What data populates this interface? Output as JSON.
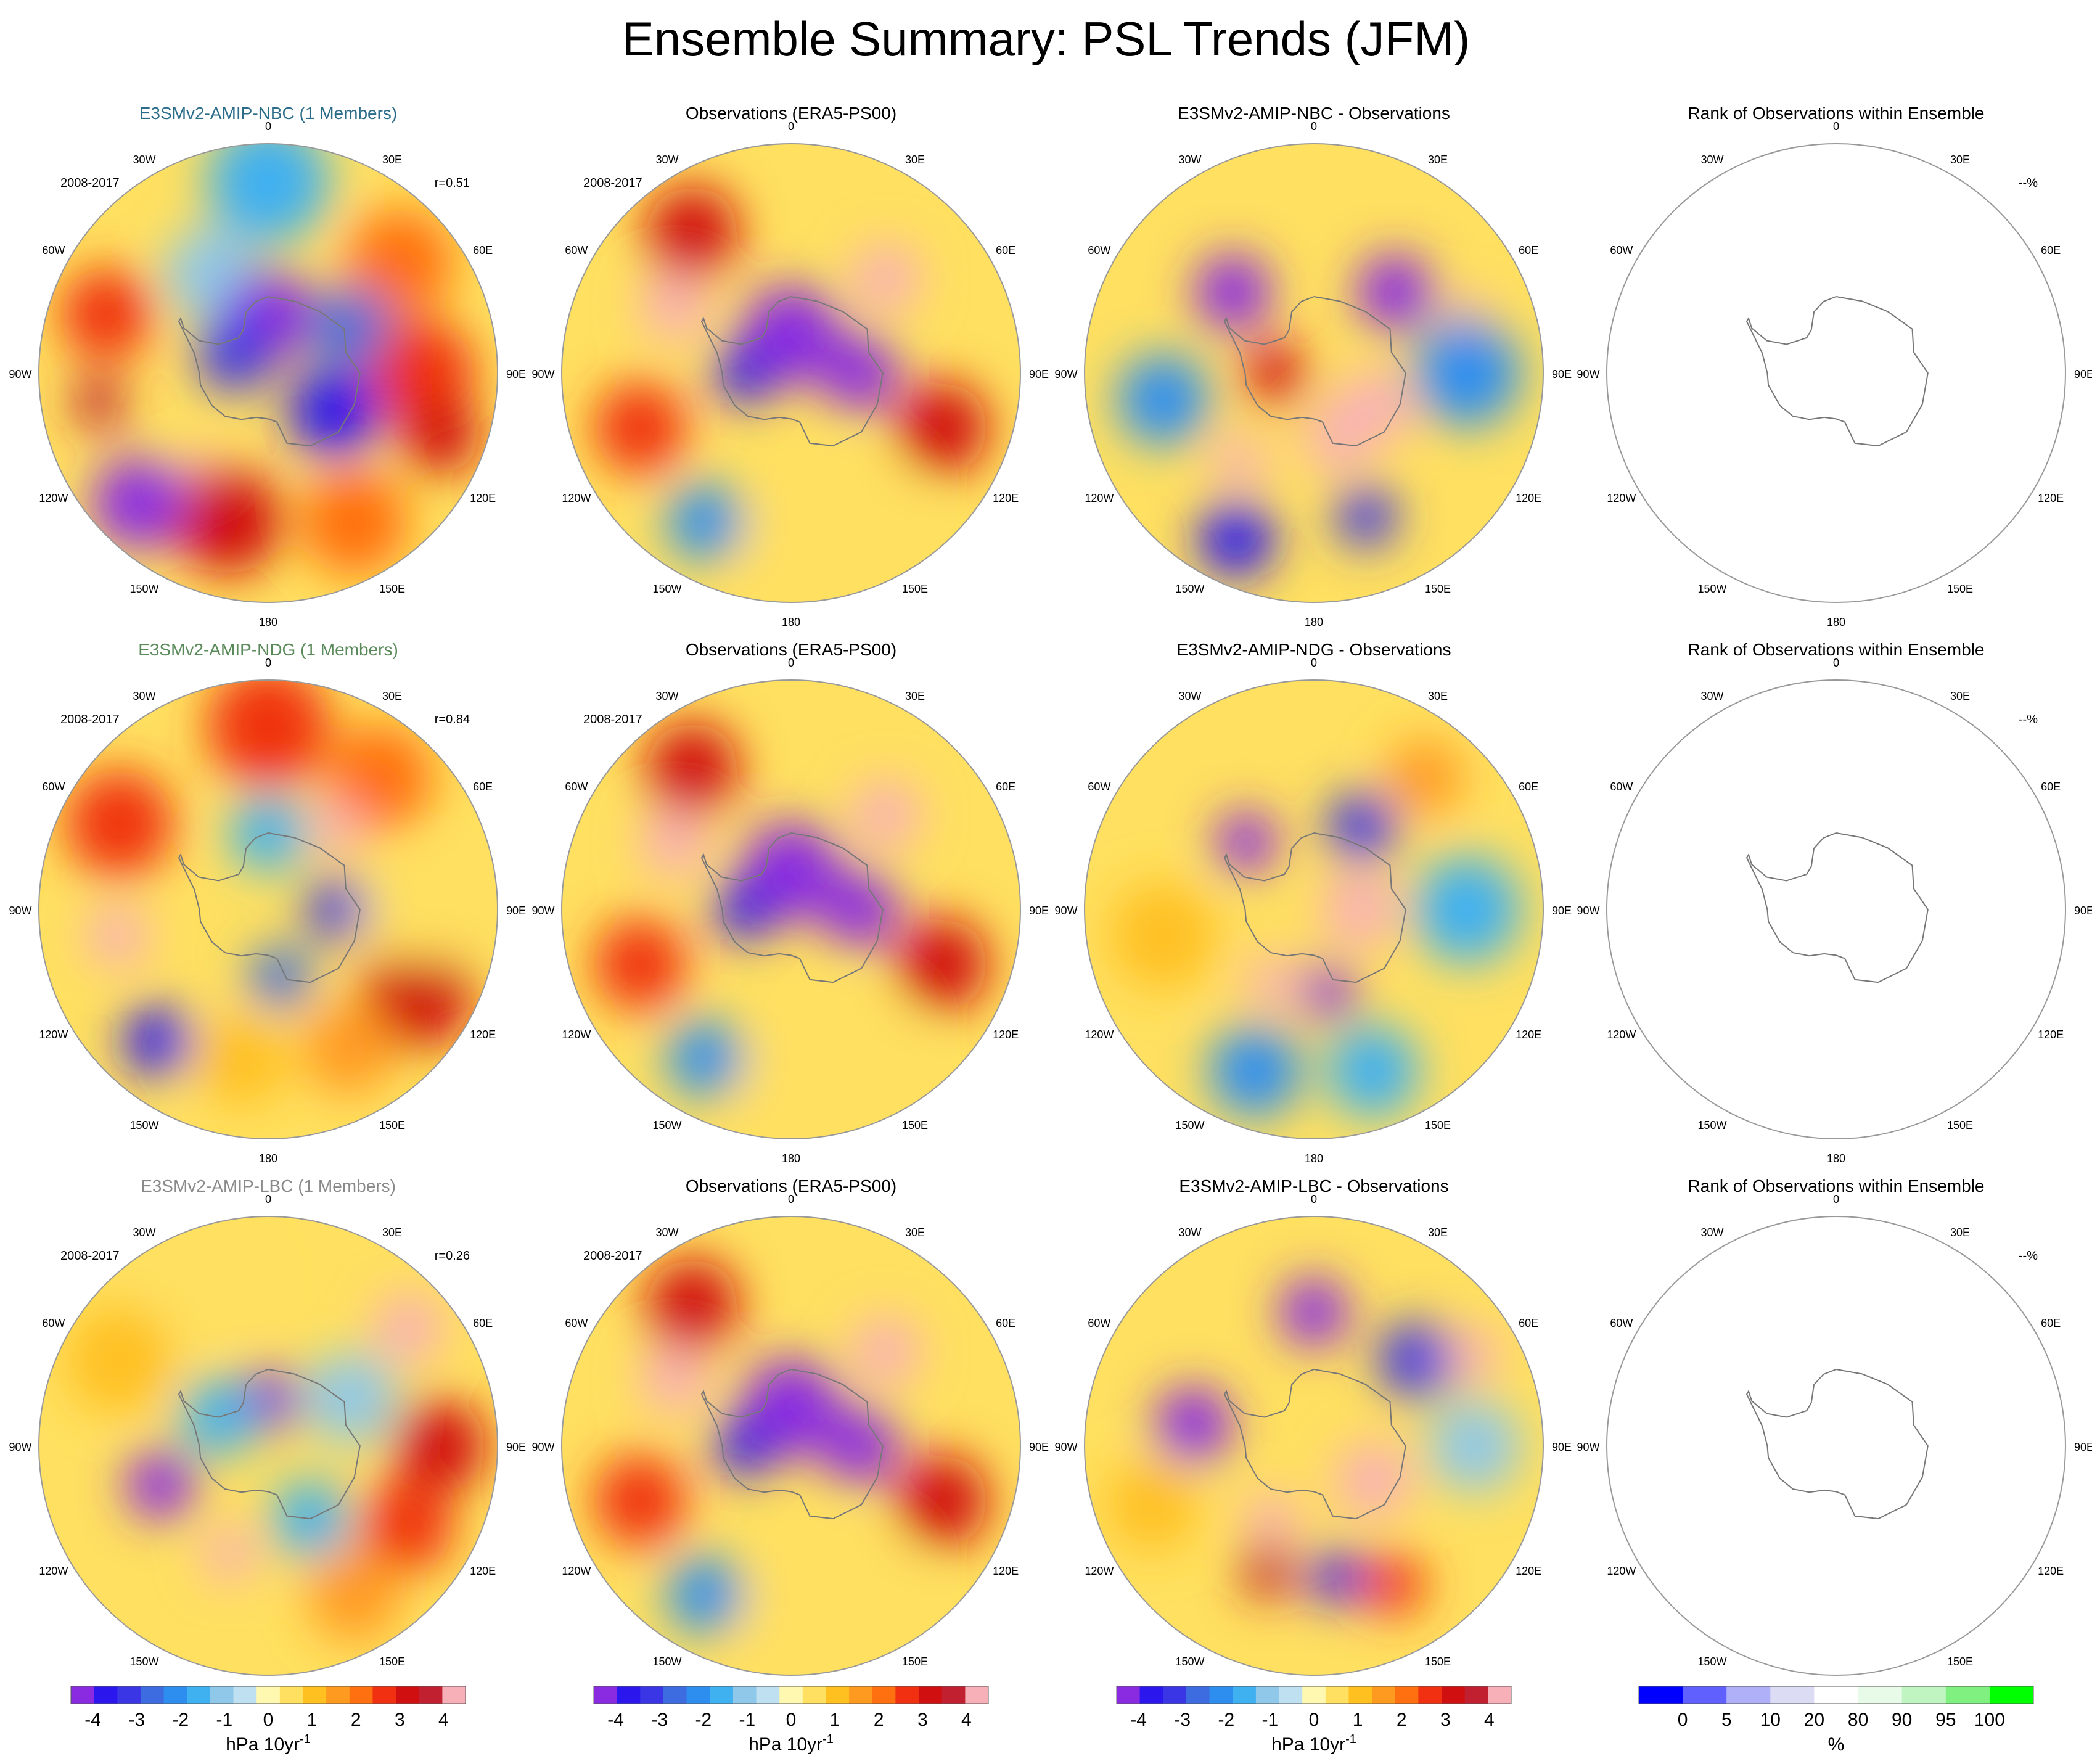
{
  "page": {
    "title": "Ensemble Summary: PSL Trends (JFM)"
  },
  "colors": {
    "model_nbc_title": "#2a6c8a",
    "model_ndg_title": "#5a8a5a",
    "model_lbc_title": "#8a8a8a",
    "map_outline": "#999999",
    "coast": "#777777"
  },
  "chart_data": {
    "type": "heatmap",
    "title": "Ensemble Summary: PSL Trends (JFM)",
    "projection": "south-polar-stereographic",
    "lon_labels": [
      "0",
      "30E",
      "60E",
      "90E",
      "120E",
      "150E",
      "180",
      "150W",
      "120W",
      "90W",
      "60W",
      "30W"
    ],
    "rows": [
      {
        "model_title": "E3SMv2-AMIP-NBC (1 Members)",
        "obs_title": "Observations (ERA5-PS00)",
        "diff_title": "E3SMv2-AMIP-NBC - Observations",
        "rank_title": "Rank of Observations within Ensemble",
        "period": "2008-2017",
        "r": "r=0.51",
        "rank_pct": "--%"
      },
      {
        "model_title": "E3SMv2-AMIP-NDG (1 Members)",
        "obs_title": "Observations (ERA5-PS00)",
        "diff_title": "E3SMv2-AMIP-NDG - Observations",
        "rank_title": "Rank of Observations within Ensemble",
        "period": "2008-2017",
        "r": "r=0.84",
        "rank_pct": "--%"
      },
      {
        "model_title": "E3SMv2-AMIP-LBC (1 Members)",
        "obs_title": "Observations (ERA5-PS00)",
        "diff_title": "E3SMv2-AMIP-LBC - Observations",
        "rank_title": "Rank of Observations within Ensemble",
        "period": "2008-2017",
        "r": "r=0.26",
        "rank_pct": "--%"
      }
    ],
    "trend_colorbar": {
      "colors": [
        "#8a2be2",
        "#2b16ee",
        "#3a36e6",
        "#3c6ce0",
        "#2d8ef0",
        "#3fb0f0",
        "#8fc8e8",
        "#bfe0f0",
        "#fff8b0",
        "#ffe060",
        "#ffc020",
        "#ff9a20",
        "#ff7010",
        "#f03010",
        "#d01010",
        "#c02030",
        "#f8b0b8"
      ],
      "tick_labels": [
        "-4",
        "-3",
        "-2",
        "-1",
        "0",
        "1",
        "2",
        "3",
        "4"
      ],
      "tick_values": [
        -4,
        -3,
        -2,
        -1,
        0,
        1,
        2,
        3,
        4
      ],
      "range": [
        -4.5,
        4.5
      ],
      "units_prefix": "hPa 10yr",
      "units_sup": "-1"
    },
    "rank_colorbar": {
      "colors": [
        "#0000ff",
        "#6060ff",
        "#b0b0f8",
        "#dcdcf4",
        "#ffffff",
        "#e8fae8",
        "#c0f4c0",
        "#80f080",
        "#00ff00"
      ],
      "tick_labels": [
        "0",
        "5",
        "10",
        "20",
        "80",
        "90",
        "95",
        "100"
      ],
      "units": "%"
    },
    "maps": {
      "nbc_model": [
        {
          "lon": 0,
          "lat": -40,
          "v": -1.5,
          "s": 16
        },
        {
          "lon": 50,
          "lat": -45,
          "v": 2.0,
          "s": 14
        },
        {
          "lon": 90,
          "lat": -50,
          "v": 2.5,
          "s": 14
        },
        {
          "lon": 110,
          "lat": -42,
          "v": 3.0,
          "s": 10
        },
        {
          "lon": 150,
          "lat": -45,
          "v": 2.0,
          "s": 14
        },
        {
          "lon": -150,
          "lat": -55,
          "v": 4.0,
          "s": 9
        },
        {
          "lon": -165,
          "lat": -50,
          "v": 3.0,
          "s": 14
        },
        {
          "lon": -135,
          "lat": -42,
          "v": -4.5,
          "s": 12
        },
        {
          "lon": -100,
          "lat": -45,
          "v": 3.5,
          "s": 7
        },
        {
          "lon": -70,
          "lat": -45,
          "v": 2.5,
          "s": 12
        },
        {
          "lon": -30,
          "lat": -60,
          "v": -1.0,
          "s": 12
        },
        {
          "lon": 60,
          "lat": -65,
          "v": -2.5,
          "s": 10
        },
        {
          "lon": 0,
          "lat": -75,
          "v": -4.5,
          "s": 12
        },
        {
          "lon": 120,
          "lat": -70,
          "v": -3.5,
          "s": 12
        },
        {
          "lon": -60,
          "lat": -80,
          "v": -3.0,
          "s": 10
        }
      ],
      "nbc_diff": [
        {
          "lon": -45,
          "lat": -60,
          "v": -4.5,
          "s": 10
        },
        {
          "lon": 45,
          "lat": -60,
          "v": -4.5,
          "s": 10
        },
        {
          "lon": 70,
          "lat": -48,
          "v": 4.0,
          "s": 6
        },
        {
          "lon": 120,
          "lat": -72,
          "v": 4.5,
          "s": 10
        },
        {
          "lon": 160,
          "lat": -72,
          "v": 4.0,
          "s": 9
        },
        {
          "lon": -140,
          "lat": -60,
          "v": 4.5,
          "s": 7
        },
        {
          "lon": 160,
          "lat": -50,
          "v": -3.0,
          "s": 8
        },
        {
          "lon": -155,
          "lat": -42,
          "v": -3.5,
          "s": 10
        },
        {
          "lon": -100,
          "lat": -50,
          "v": -2.0,
          "s": 12
        },
        {
          "lon": 90,
          "lat": -50,
          "v": -2.0,
          "s": 14
        },
        {
          "lon": -90,
          "lat": -80,
          "v": 3.0,
          "s": 8
        }
      ],
      "ndg_model": [
        {
          "lon": 0,
          "lat": -42,
          "v": 2.5,
          "s": 16
        },
        {
          "lon": 40,
          "lat": -45,
          "v": 2.0,
          "s": 14
        },
        {
          "lon": -60,
          "lat": -45,
          "v": 2.5,
          "s": 14
        },
        {
          "lon": -100,
          "lat": -50,
          "v": 4.5,
          "s": 8
        },
        {
          "lon": 40,
          "lat": -62,
          "v": 4.0,
          "s": 7
        },
        {
          "lon": 120,
          "lat": -45,
          "v": 3.0,
          "s": 14
        },
        {
          "lon": -140,
          "lat": -45,
          "v": -3.5,
          "s": 9
        },
        {
          "lon": -170,
          "lat": -50,
          "v": 1.0,
          "s": 12
        },
        {
          "lon": 150,
          "lat": -48,
          "v": 1.5,
          "s": 12
        },
        {
          "lon": 90,
          "lat": -72,
          "v": -3.0,
          "s": 8
        },
        {
          "lon": 170,
          "lat": -72,
          "v": -2.5,
          "s": 8
        },
        {
          "lon": 0,
          "lat": -70,
          "v": -1.5,
          "s": 10
        },
        {
          "lon": 90,
          "lat": -50,
          "v": 0.5,
          "s": 14
        }
      ],
      "ndg_diff": [
        {
          "lon": -45,
          "lat": -65,
          "v": -4.0,
          "s": 8
        },
        {
          "lon": 30,
          "lat": -65,
          "v": -3.0,
          "s": 9
        },
        {
          "lon": 90,
          "lat": -78,
          "v": 4.5,
          "s": 10
        },
        {
          "lon": -150,
          "lat": -68,
          "v": 4.0,
          "s": 7
        },
        {
          "lon": 170,
          "lat": -68,
          "v": -4.0,
          "s": 7
        },
        {
          "lon": -100,
          "lat": -50,
          "v": 1.0,
          "s": 14
        },
        {
          "lon": 40,
          "lat": -45,
          "v": 1.5,
          "s": 10
        },
        {
          "lon": 90,
          "lat": -50,
          "v": -1.5,
          "s": 14
        },
        {
          "lon": -160,
          "lat": -45,
          "v": -2.0,
          "s": 12
        },
        {
          "lon": 160,
          "lat": -45,
          "v": -1.5,
          "s": 12
        }
      ],
      "lbc_model": [
        {
          "lon": 0,
          "lat": -78,
          "v": -4.0,
          "s": 8
        },
        {
          "lon": -110,
          "lat": -60,
          "v": -4.5,
          "s": 9
        },
        {
          "lon": -160,
          "lat": -60,
          "v": 4.0,
          "s": 7
        },
        {
          "lon": 50,
          "lat": -42,
          "v": 4.0,
          "s": 9
        },
        {
          "lon": 90,
          "lat": -45,
          "v": 3.0,
          "s": 12
        },
        {
          "lon": 120,
          "lat": -48,
          "v": 2.5,
          "s": 12
        },
        {
          "lon": 150,
          "lat": -45,
          "v": 1.5,
          "s": 12
        },
        {
          "lon": -60,
          "lat": -45,
          "v": 1.0,
          "s": 14
        },
        {
          "lon": -20,
          "lat": -45,
          "v": 0.5,
          "s": 14
        },
        {
          "lon": 150,
          "lat": -68,
          "v": -1.5,
          "s": 10
        },
        {
          "lon": 60,
          "lat": -65,
          "v": -1.0,
          "s": 12
        },
        {
          "lon": -60,
          "lat": -75,
          "v": -1.5,
          "s": 10
        }
      ],
      "lbc_diff": [
        {
          "lon": 0,
          "lat": -55,
          "v": -4.5,
          "s": 9
        },
        {
          "lon": -80,
          "lat": -58,
          "v": -4.5,
          "s": 10
        },
        {
          "lon": 50,
          "lat": -55,
          "v": -3.0,
          "s": 10
        },
        {
          "lon": 60,
          "lat": -42,
          "v": 4.0,
          "s": 7
        },
        {
          "lon": 120,
          "lat": -72,
          "v": 4.5,
          "s": 10
        },
        {
          "lon": -150,
          "lat": -68,
          "v": 4.5,
          "s": 7
        },
        {
          "lon": -160,
          "lat": -55,
          "v": 3.5,
          "s": 7
        },
        {
          "lon": 170,
          "lat": -55,
          "v": -3.5,
          "s": 7
        },
        {
          "lon": 150,
          "lat": -48,
          "v": 2.5,
          "s": 8
        },
        {
          "lon": -110,
          "lat": -45,
          "v": 1.0,
          "s": 12
        },
        {
          "lon": 90,
          "lat": -48,
          "v": -1.0,
          "s": 12
        }
      ],
      "obs": [
        {
          "lon": 0,
          "lat": -80,
          "v": -4.5,
          "s": 13
        },
        {
          "lon": 90,
          "lat": -72,
          "v": -4.5,
          "s": 10
        },
        {
          "lon": -90,
          "lat": -78,
          "v": -3.5,
          "s": 8
        },
        {
          "lon": 45,
          "lat": -55,
          "v": 4.5,
          "s": 9
        },
        {
          "lon": -60,
          "lat": -55,
          "v": 4.5,
          "s": 9
        },
        {
          "lon": -35,
          "lat": -45,
          "v": 3.0,
          "s": 12
        },
        {
          "lon": 110,
          "lat": -48,
          "v": 3.0,
          "s": 12
        },
        {
          "lon": -110,
          "lat": -48,
          "v": 2.5,
          "s": 12
        },
        {
          "lon": -150,
          "lat": -45,
          "v": -2.0,
          "s": 10
        },
        {
          "lon": 150,
          "lat": -50,
          "v": 0.5,
          "s": 12
        },
        {
          "lon": 180,
          "lat": -45,
          "v": 0.5,
          "s": 12
        }
      ]
    }
  }
}
